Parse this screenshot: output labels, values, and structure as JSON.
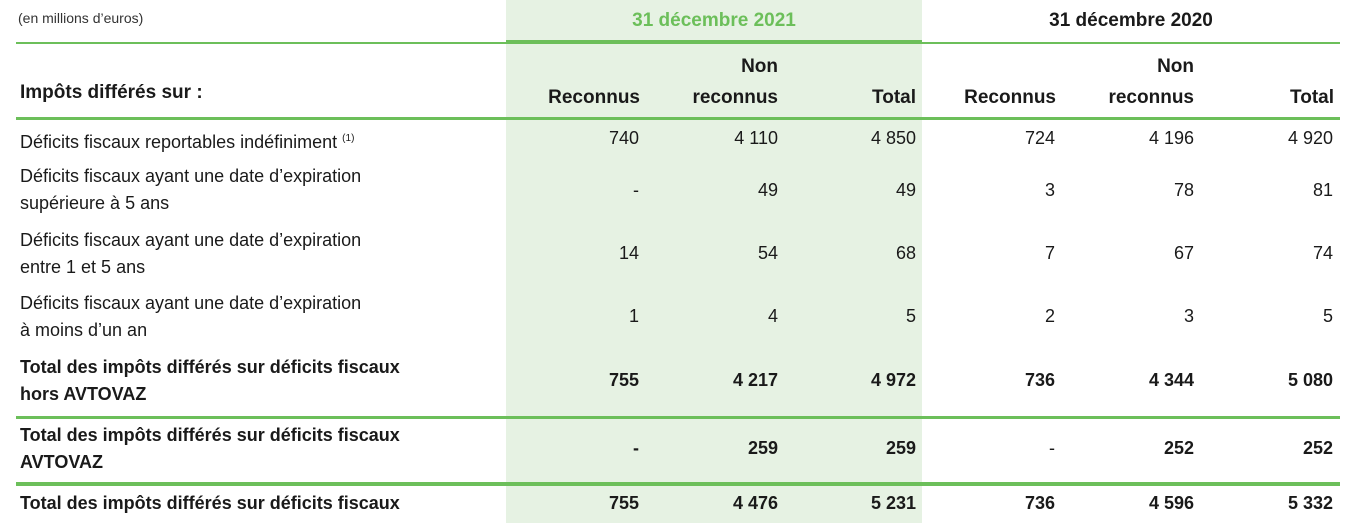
{
  "unit_note": "(en millions d’euros)",
  "periods": {
    "current": "31 décembre 2021",
    "previous": "31 décembre 2020"
  },
  "row_header": "Impôts différés sur :",
  "columns": {
    "recognized": "Reconnus",
    "not_recognized_1": "Non",
    "not_recognized_2": "reconnus",
    "total": "Total"
  },
  "colors": {
    "accent": "#6cbf5a",
    "highlight": "#e6f2e3"
  },
  "rows": [
    {
      "label_line1": "Déficits fiscaux reportables indéfiniment",
      "label_line2": "",
      "footnote": "(1)",
      "bold": false,
      "values": [
        "740",
        "4 110",
        "4 850",
        "724",
        "4 196",
        "4 920"
      ]
    },
    {
      "label_line1": "Déficits fiscaux ayant une date d’expiration",
      "label_line2": "supérieure à 5 ans",
      "footnote": "",
      "bold": false,
      "values": [
        "-",
        "49",
        "49",
        "3",
        "78",
        "81"
      ]
    },
    {
      "label_line1": "Déficits fiscaux ayant une date d’expiration",
      "label_line2": "entre 1 et 5 ans",
      "footnote": "",
      "bold": false,
      "values": [
        "14",
        "54",
        "68",
        "7",
        "67",
        "74"
      ]
    },
    {
      "label_line1": "Déficits fiscaux ayant une date d’expiration",
      "label_line2": "à moins d’un an",
      "footnote": "",
      "bold": false,
      "values": [
        "1",
        "4",
        "5",
        "2",
        "3",
        "5"
      ]
    },
    {
      "label_line1": "Total des impôts différés sur déficits fiscaux",
      "label_line2": "hors AVTOVAZ",
      "footnote": "",
      "bold": true,
      "values": [
        "755",
        "4 217",
        "4 972",
        "736",
        "4 344",
        "5 080"
      ]
    },
    {
      "label_line1": "Total des impôts différés sur déficits fiscaux",
      "label_line2": "AVTOVAZ",
      "footnote": "",
      "bold": true,
      "values": [
        "-",
        "259",
        "259",
        "-",
        "252",
        "252"
      ]
    },
    {
      "label_line1": "Total des impôts différés sur déficits fiscaux",
      "label_line2": "",
      "footnote": "",
      "bold": true,
      "values": [
        "755",
        "4 476",
        "5 231",
        "736",
        "4 596",
        "5 332"
      ]
    }
  ]
}
